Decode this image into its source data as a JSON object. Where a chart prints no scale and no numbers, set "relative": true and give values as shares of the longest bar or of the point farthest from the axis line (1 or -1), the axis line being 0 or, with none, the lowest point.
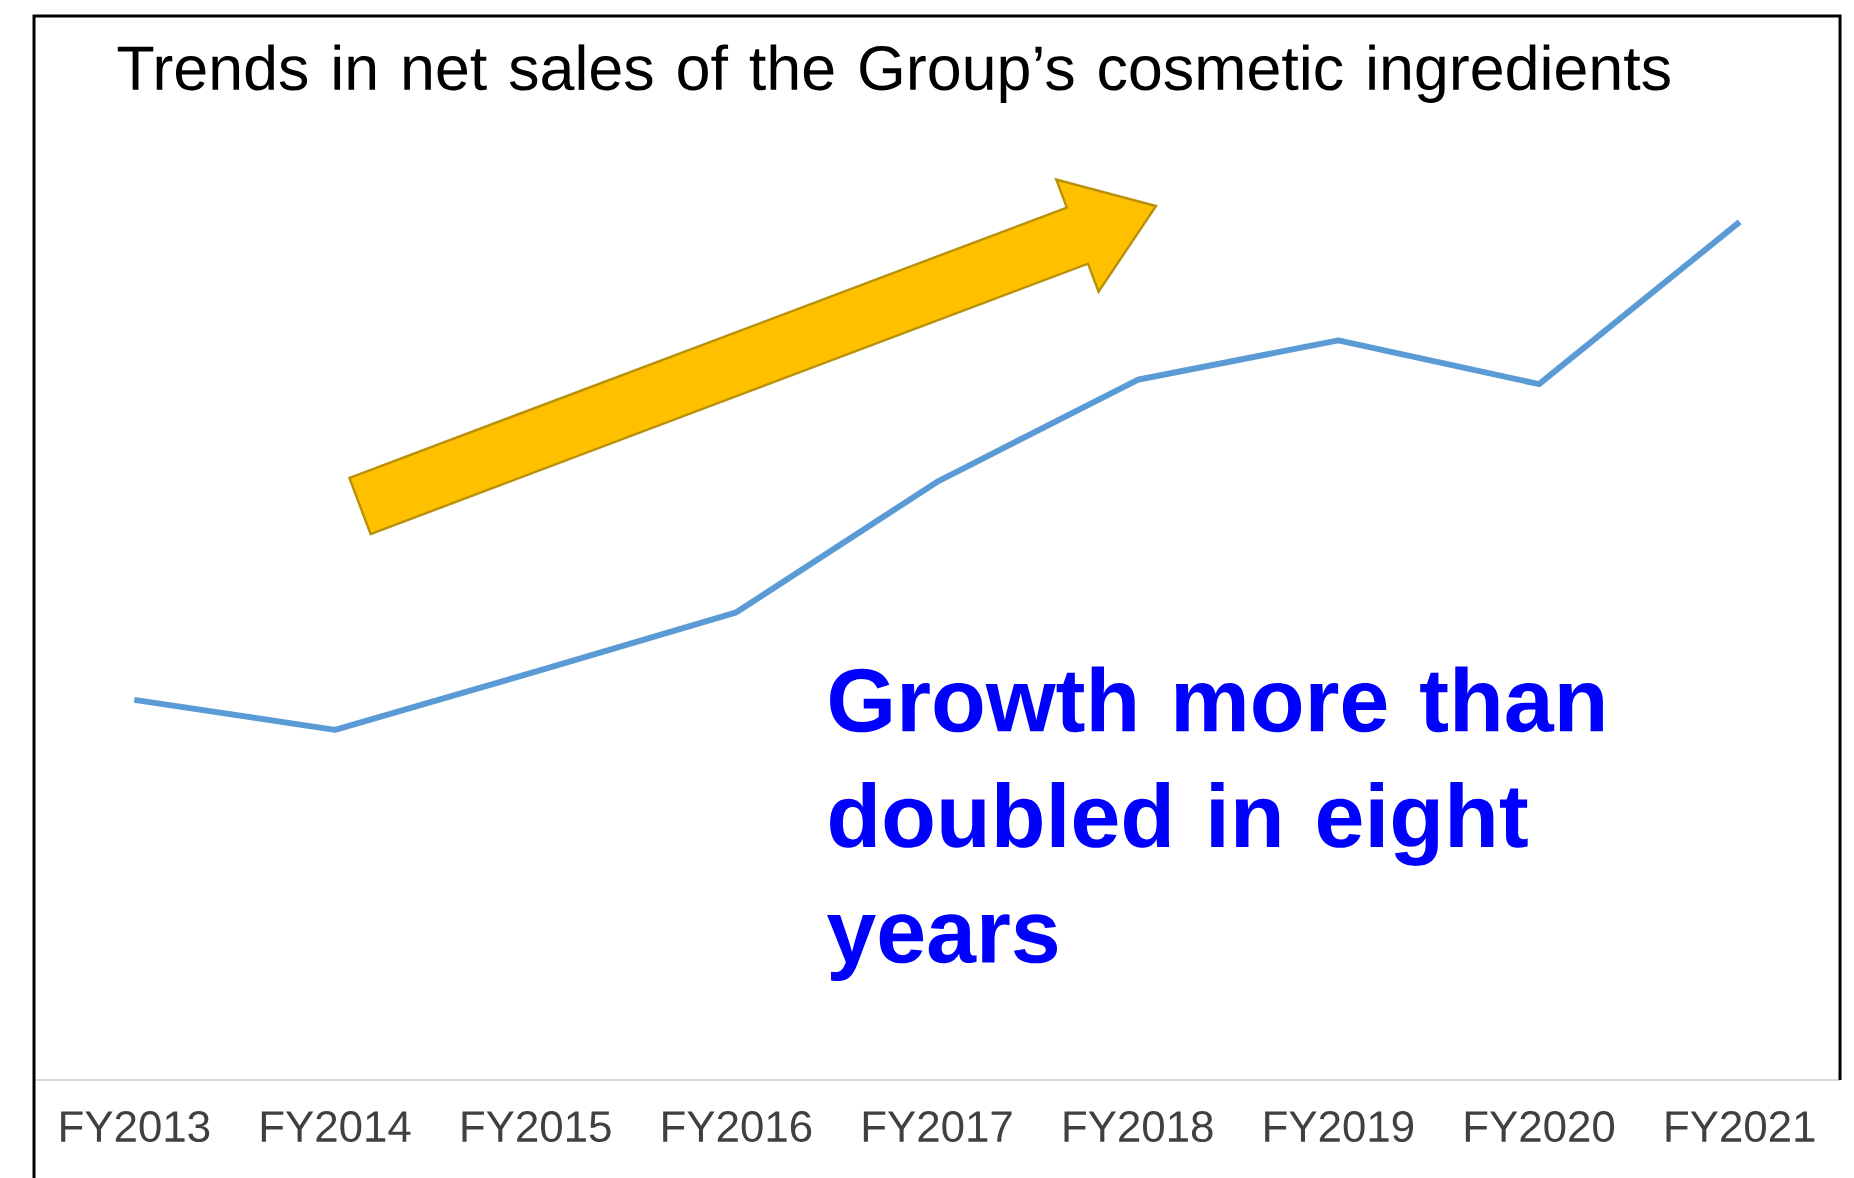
{
  "chart_data": {
    "type": "line",
    "title": "Trends in net sales of the Group’s cosmetic ingredients",
    "annotations": [
      "Growth more than doubled in eight years"
    ],
    "categories": [
      "FY2013",
      "FY2014",
      "FY2015",
      "FY2016",
      "FY2017",
      "FY2018",
      "FY2019",
      "FY2020",
      "FY2021"
    ],
    "values": [
      0.443,
      0.408,
      0.476,
      0.545,
      0.697,
      0.816,
      0.862,
      0.811,
      1
    ],
    "color": "#5b9bd5",
    "relative": true
  }
}
